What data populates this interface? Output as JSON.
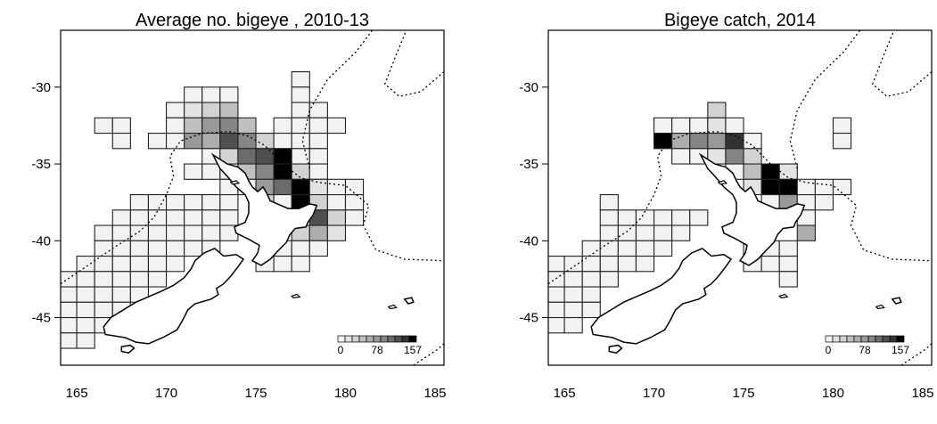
{
  "colors": {
    "coast": "#000000",
    "cell_stroke": "#222222",
    "boundary": "#000000"
  },
  "x_ticks": [
    165,
    170,
    175,
    180,
    185
  ],
  "y_ticks": [
    -30,
    -35,
    -40,
    -45
  ],
  "xlim": [
    164.1,
    185.5
  ],
  "ylim": [
    -48.1,
    -26.3
  ],
  "panels": [
    {
      "title": "Average no. bigeye , 2010-13",
      "legend": {
        "min": "0",
        "mid": "78",
        "max": "157"
      },
      "cells": [
        [
          177,
          -29,
          0
        ],
        [
          171,
          -30,
          0
        ],
        [
          172,
          -30,
          0
        ],
        [
          173,
          -30,
          0
        ],
        [
          177,
          -30,
          0
        ],
        [
          170,
          -31,
          0
        ],
        [
          171,
          -31,
          1
        ],
        [
          172,
          -31,
          2
        ],
        [
          173,
          -31,
          3
        ],
        [
          177,
          -31,
          0
        ],
        [
          178,
          -31,
          0
        ],
        [
          166,
          -32,
          0
        ],
        [
          167,
          -32,
          0
        ],
        [
          170,
          -32,
          0
        ],
        [
          171,
          -32,
          3
        ],
        [
          172,
          -32,
          5
        ],
        [
          173,
          -32,
          6
        ],
        [
          174,
          -32,
          3
        ],
        [
          176,
          -32,
          0
        ],
        [
          177,
          -32,
          0
        ],
        [
          178,
          -32,
          0
        ],
        [
          179,
          -32,
          0
        ],
        [
          167,
          -33,
          0
        ],
        [
          169,
          -33,
          0
        ],
        [
          170,
          -33,
          0
        ],
        [
          171,
          -33,
          5
        ],
        [
          172,
          -33,
          4
        ],
        [
          173,
          -33,
          8
        ],
        [
          174,
          -33,
          6
        ],
        [
          175,
          -33,
          2
        ],
        [
          176,
          -33,
          0
        ],
        [
          177,
          -33,
          0
        ],
        [
          178,
          -33,
          0
        ],
        [
          172,
          -34,
          0
        ],
        [
          173,
          -34,
          2
        ],
        [
          174,
          -34,
          7
        ],
        [
          175,
          -34,
          8
        ],
        [
          176,
          -34,
          10
        ],
        [
          177,
          -34,
          0
        ],
        [
          178,
          -34,
          0
        ],
        [
          171,
          -35,
          0
        ],
        [
          172,
          -35,
          0
        ],
        [
          173,
          -35,
          0
        ],
        [
          174,
          -35,
          3
        ],
        [
          175,
          -35,
          6
        ],
        [
          176,
          -35,
          10
        ],
        [
          177,
          -35,
          2
        ],
        [
          178,
          -35,
          0
        ],
        [
          173,
          -36,
          0
        ],
        [
          174,
          -36,
          0
        ],
        [
          175,
          -36,
          5
        ],
        [
          176,
          -36,
          7
        ],
        [
          177,
          -36,
          10
        ],
        [
          178,
          -36,
          1
        ],
        [
          179,
          -36,
          0
        ],
        [
          180,
          -36,
          0
        ],
        [
          168,
          -37,
          0
        ],
        [
          169,
          -37,
          0
        ],
        [
          170,
          -37,
          0
        ],
        [
          171,
          -37,
          0
        ],
        [
          172,
          -37,
          0
        ],
        [
          173,
          -37,
          0
        ],
        [
          175,
          -37,
          2
        ],
        [
          176,
          -37,
          0
        ],
        [
          177,
          -37,
          10
        ],
        [
          178,
          -37,
          2
        ],
        [
          179,
          -37,
          0
        ],
        [
          180,
          -37,
          0
        ],
        [
          167,
          -38,
          0
        ],
        [
          168,
          -38,
          0
        ],
        [
          169,
          -38,
          0
        ],
        [
          170,
          -38,
          0
        ],
        [
          171,
          -38,
          0
        ],
        [
          172,
          -38,
          0
        ],
        [
          173,
          -38,
          0
        ],
        [
          178,
          -38,
          8
        ],
        [
          179,
          -38,
          2
        ],
        [
          180,
          -38,
          0
        ],
        [
          166,
          -39,
          0
        ],
        [
          167,
          -39,
          0
        ],
        [
          168,
          -39,
          0
        ],
        [
          169,
          -39,
          0
        ],
        [
          170,
          -39,
          0
        ],
        [
          171,
          -39,
          0
        ],
        [
          172,
          -39,
          0
        ],
        [
          173,
          -39,
          0
        ],
        [
          177,
          -39,
          2
        ],
        [
          178,
          -39,
          4
        ],
        [
          179,
          -39,
          1
        ],
        [
          166,
          -40,
          0
        ],
        [
          167,
          -40,
          0
        ],
        [
          168,
          -40,
          0
        ],
        [
          169,
          -40,
          0
        ],
        [
          170,
          -40,
          0
        ],
        [
          171,
          -40,
          0
        ],
        [
          172,
          -40,
          0
        ],
        [
          176,
          -40,
          0
        ],
        [
          177,
          -40,
          0
        ],
        [
          178,
          -40,
          0
        ],
        [
          165,
          -41,
          0
        ],
        [
          166,
          -41,
          0
        ],
        [
          167,
          -41,
          0
        ],
        [
          168,
          -41,
          0
        ],
        [
          169,
          -41,
          0
        ],
        [
          170,
          -41,
          0
        ],
        [
          175,
          -41,
          0
        ],
        [
          176,
          -41,
          0
        ],
        [
          177,
          -41,
          0
        ],
        [
          164,
          -42,
          0
        ],
        [
          165,
          -42,
          0
        ],
        [
          166,
          -42,
          0
        ],
        [
          167,
          -42,
          0
        ],
        [
          168,
          -42,
          0
        ],
        [
          169,
          -42,
          0
        ],
        [
          164,
          -43,
          0
        ],
        [
          165,
          -43,
          0
        ],
        [
          166,
          -43,
          0
        ],
        [
          167,
          -43,
          0
        ],
        [
          168,
          -43,
          0
        ],
        [
          164,
          -44,
          0
        ],
        [
          165,
          -44,
          0
        ],
        [
          166,
          -44,
          0
        ],
        [
          167,
          -44,
          0
        ],
        [
          164,
          -45,
          0
        ],
        [
          165,
          -45,
          0
        ],
        [
          166,
          -45,
          0
        ],
        [
          164,
          -46,
          0
        ],
        [
          165,
          -46,
          0
        ]
      ]
    },
    {
      "title": "Bigeye catch, 2014",
      "legend": {
        "min": "0",
        "mid": "78",
        "max": "157"
      },
      "cells": [
        [
          180,
          -32,
          0
        ],
        [
          180,
          -33,
          0
        ],
        [
          173,
          -31,
          2
        ],
        [
          170,
          -32,
          0
        ],
        [
          171,
          -32,
          0
        ],
        [
          172,
          -32,
          0
        ],
        [
          173,
          -32,
          1
        ],
        [
          174,
          -32,
          0
        ],
        [
          170,
          -33,
          10
        ],
        [
          171,
          -33,
          4
        ],
        [
          172,
          -33,
          6
        ],
        [
          173,
          -33,
          5
        ],
        [
          174,
          -33,
          9
        ],
        [
          175,
          -33,
          0
        ],
        [
          171,
          -34,
          0
        ],
        [
          172,
          -34,
          0
        ],
        [
          173,
          -34,
          1
        ],
        [
          174,
          -34,
          6
        ],
        [
          175,
          -34,
          2
        ],
        [
          174,
          -35,
          0
        ],
        [
          175,
          -35,
          3
        ],
        [
          176,
          -35,
          10
        ],
        [
          177,
          -35,
          1
        ],
        [
          175,
          -36,
          1
        ],
        [
          176,
          -36,
          10
        ],
        [
          177,
          -36,
          10
        ],
        [
          178,
          -36,
          0
        ],
        [
          179,
          -36,
          0
        ],
        [
          180,
          -36,
          0
        ],
        [
          167,
          -37,
          0
        ],
        [
          176,
          -37,
          0
        ],
        [
          177,
          -37,
          5
        ],
        [
          178,
          -37,
          0
        ],
        [
          179,
          -37,
          0
        ],
        [
          167,
          -38,
          0
        ],
        [
          168,
          -38,
          0
        ],
        [
          169,
          -38,
          0
        ],
        [
          170,
          -38,
          0
        ],
        [
          171,
          -38,
          0
        ],
        [
          172,
          -38,
          0
        ],
        [
          178,
          -38,
          0
        ],
        [
          167,
          -39,
          0
        ],
        [
          168,
          -39,
          0
        ],
        [
          169,
          -39,
          0
        ],
        [
          170,
          -39,
          0
        ],
        [
          171,
          -39,
          0
        ],
        [
          178,
          -39,
          4
        ],
        [
          166,
          -40,
          0
        ],
        [
          167,
          -40,
          0
        ],
        [
          168,
          -40,
          0
        ],
        [
          169,
          -40,
          0
        ],
        [
          170,
          -40,
          0
        ],
        [
          175,
          -40,
          0
        ],
        [
          176,
          -40,
          0
        ],
        [
          177,
          -40,
          0
        ],
        [
          164,
          -41,
          0
        ],
        [
          165,
          -41,
          0
        ],
        [
          166,
          -41,
          0
        ],
        [
          167,
          -41,
          0
        ],
        [
          168,
          -41,
          0
        ],
        [
          169,
          -41,
          0
        ],
        [
          175,
          -41,
          0
        ],
        [
          176,
          -41,
          0
        ],
        [
          177,
          -41,
          0
        ],
        [
          164,
          -42,
          0
        ],
        [
          165,
          -42,
          0
        ],
        [
          166,
          -42,
          0
        ],
        [
          167,
          -42,
          0
        ],
        [
          177,
          -42,
          0
        ],
        [
          164,
          -43,
          0
        ],
        [
          165,
          -43,
          0
        ],
        [
          166,
          -43,
          0
        ],
        [
          164,
          -44,
          0
        ],
        [
          165,
          -44,
          0
        ],
        [
          166,
          -44,
          0
        ],
        [
          164,
          -45,
          0
        ],
        [
          165,
          -45,
          0
        ]
      ]
    }
  ],
  "legend_levels": 11
}
